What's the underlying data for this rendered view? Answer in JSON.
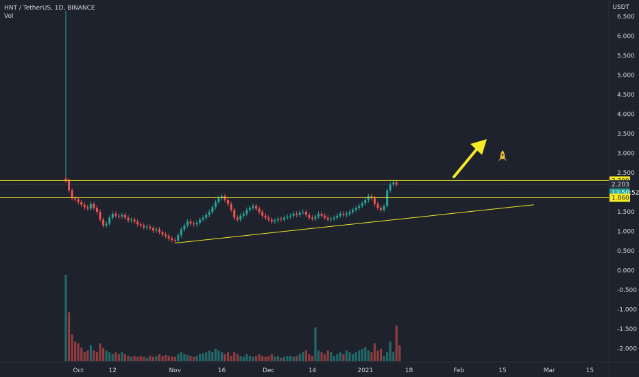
{
  "header": {
    "symbol": "HNT / TetherUS, 1D, BINANCE",
    "volume_label": "Vol"
  },
  "axis": {
    "currency": "USDT"
  },
  "chart_data": {
    "type": "candlestick",
    "title": "HNT / TetherUS, 1D, BINANCE",
    "price_axis": {
      "ticks": [
        "6.500",
        "6.000",
        "5.500",
        "5.000",
        "4.500",
        "4.000",
        "3.500",
        "3.000",
        "2.500",
        "1.500",
        "1.000",
        "0.500",
        "0.000",
        "-0.500",
        "-1.000",
        "-1.500",
        "-2.000"
      ],
      "tick_values": [
        6.5,
        6.0,
        5.5,
        5.0,
        4.5,
        4.0,
        3.5,
        3.0,
        2.5,
        1.5,
        1.0,
        0.5,
        0.0,
        -0.5,
        -1.0,
        -1.5,
        -2.0
      ],
      "ylim": [
        -2.2,
        6.9
      ]
    },
    "time_axis": {
      "labels": [
        "Oct",
        "12",
        "Nov",
        "16",
        "Dec",
        "14",
        "2021",
        "18",
        "Feb",
        "15",
        "Mar",
        "15"
      ],
      "label_day_index": [
        4,
        15,
        35,
        50,
        65,
        79,
        96,
        110,
        126,
        140,
        155,
        168
      ]
    },
    "price_badges": [
      {
        "label": "2.300",
        "value": 2.3,
        "color": "#f5ea25",
        "text_color": "#1e222d"
      },
      {
        "label": "2.203",
        "value": 2.203,
        "color": "#2a2e39",
        "text_color": "#d1d4dc"
      },
      {
        "label": "13:50:52",
        "value": 1.99,
        "color": "#26a69a",
        "text_color": "#ffffff"
      },
      {
        "label": "1.860",
        "value": 1.86,
        "color": "#f5ea25",
        "text_color": "#1e222d"
      }
    ],
    "horizontal_levels": [
      2.3,
      1.86
    ],
    "trendline": {
      "start": {
        "day": 35,
        "price": 0.7
      },
      "end": {
        "day": 150,
        "price": 1.68
      }
    },
    "closes": [
      2.3,
      2.05,
      1.85,
      1.82,
      1.75,
      1.68,
      1.62,
      1.58,
      1.7,
      1.6,
      1.5,
      1.3,
      1.15,
      1.2,
      1.35,
      1.45,
      1.4,
      1.38,
      1.42,
      1.35,
      1.28,
      1.3,
      1.25,
      1.18,
      1.15,
      1.1,
      1.12,
      1.08,
      1.02,
      1.05,
      0.98,
      0.92,
      0.88,
      0.82,
      0.78,
      0.76,
      0.9,
      1.05,
      1.15,
      1.25,
      1.2,
      1.18,
      1.22,
      1.3,
      1.35,
      1.42,
      1.5,
      1.62,
      1.75,
      1.85,
      1.9,
      1.8,
      1.7,
      1.55,
      1.35,
      1.3,
      1.4,
      1.45,
      1.55,
      1.6,
      1.65,
      1.58,
      1.5,
      1.4,
      1.35,
      1.3,
      1.25,
      1.28,
      1.32,
      1.3,
      1.35,
      1.38,
      1.4,
      1.45,
      1.42,
      1.48,
      1.5,
      1.42,
      1.35,
      1.32,
      1.38,
      1.45,
      1.4,
      1.35,
      1.3,
      1.32,
      1.35,
      1.4,
      1.45,
      1.42,
      1.45,
      1.5,
      1.55,
      1.6,
      1.65,
      1.72,
      1.8,
      1.9,
      1.85,
      1.7,
      1.6,
      1.55,
      1.65,
      2.05,
      2.2,
      2.25,
      2.203
    ],
    "volume": [
      0.97,
      0.55,
      0.3,
      0.22,
      0.2,
      0.15,
      0.1,
      0.12,
      0.18,
      0.12,
      0.1,
      0.2,
      0.15,
      0.12,
      0.1,
      0.08,
      0.1,
      0.08,
      0.1,
      0.08,
      0.06,
      0.05,
      0.06,
      0.05,
      0.06,
      0.05,
      0.04,
      0.06,
      0.05,
      0.06,
      0.08,
      0.06,
      0.07,
      0.06,
      0.05,
      0.05,
      0.08,
      0.1,
      0.08,
      0.07,
      0.06,
      0.05,
      0.06,
      0.08,
      0.09,
      0.1,
      0.12,
      0.1,
      0.14,
      0.12,
      0.1,
      0.08,
      0.1,
      0.06,
      0.1,
      0.08,
      0.06,
      0.05,
      0.08,
      0.06,
      0.05,
      0.06,
      0.08,
      0.06,
      0.05,
      0.06,
      0.08,
      0.05,
      0.06,
      0.04,
      0.05,
      0.06,
      0.06,
      0.05,
      0.06,
      0.08,
      0.1,
      0.12,
      0.08,
      0.06,
      0.38,
      0.12,
      0.1,
      0.08,
      0.12,
      0.1,
      0.06,
      0.08,
      0.1,
      0.08,
      0.12,
      0.1,
      0.08,
      0.1,
      0.12,
      0.14,
      0.16,
      0.12,
      0.1,
      0.2,
      0.12,
      0.14,
      0.06,
      0.1,
      0.22,
      0.1,
      0.4,
      0.18
    ]
  }
}
